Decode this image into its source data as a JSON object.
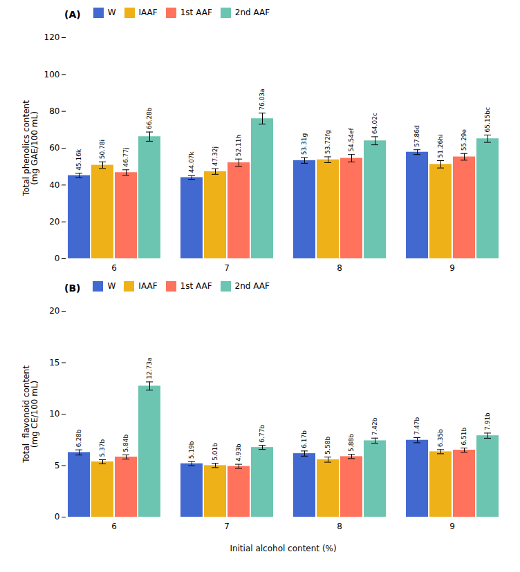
{
  "chart_data": [
    {
      "type": "bar",
      "title": "(A)",
      "ylabel": "Total phenolics content\n(mg GAE/100 mL)",
      "categories": [
        "6",
        "7",
        "8",
        "9"
      ],
      "series": [
        {
          "name": "W",
          "values": [
            45.16,
            44.07,
            53.31,
            57.86
          ],
          "errors": [
            1.2,
            1.0,
            1.5,
            1.3
          ],
          "value_labels": [
            "45.16k",
            "44.07k",
            "53.31g",
            "57.86d"
          ]
        },
        {
          "name": "IAAF",
          "values": [
            50.78,
            47.32,
            53.72,
            51.26
          ],
          "errors": [
            1.8,
            1.5,
            1.6,
            2.0
          ],
          "value_labels": [
            "50.78i",
            "47.32j",
            "53.72fg",
            "51.26hi"
          ]
        },
        {
          "name": "1st AAF",
          "values": [
            46.77,
            52.11,
            54.54,
            55.29
          ],
          "errors": [
            1.5,
            2.0,
            2.0,
            1.8
          ],
          "value_labels": [
            "46.77j",
            "52.11h",
            "54.54ef",
            "55.29e"
          ]
        },
        {
          "name": "2nd AAF",
          "values": [
            66.28,
            76.03,
            64.02,
            65.15
          ],
          "errors": [
            2.5,
            3.0,
            2.2,
            2.0
          ],
          "value_labels": [
            "66.28b",
            "76.03a",
            "64.02c",
            "65.15bc"
          ]
        }
      ],
      "ylim": [
        0,
        120
      ],
      "yticks": [
        0,
        20,
        40,
        60,
        80,
        100,
        120
      ],
      "grid": false,
      "legend": "upper left",
      "data_labels": true
    },
    {
      "type": "bar",
      "title": "(B)",
      "ylabel": "Total  flavonoid content\n(mg CE/100 mL)",
      "xlabel": "Initial alcohol content (%)",
      "categories": [
        "6",
        "7",
        "8",
        "9"
      ],
      "series": [
        {
          "name": "W",
          "values": [
            6.28,
            5.19,
            6.17,
            7.47
          ],
          "errors": [
            0.25,
            0.2,
            0.25,
            0.25
          ],
          "value_labels": [
            "6.28b",
            "5.19b",
            "6.17b",
            "7.47b"
          ]
        },
        {
          "name": "IAAF",
          "values": [
            5.37,
            5.01,
            5.58,
            6.35
          ],
          "errors": [
            0.2,
            0.2,
            0.25,
            0.2
          ],
          "value_labels": [
            "5.37b",
            "5.01b",
            "5.58b",
            "6.35b"
          ]
        },
        {
          "name": "1st AAF",
          "values": [
            5.84,
            4.93,
            5.88,
            6.51
          ],
          "errors": [
            0.2,
            0.2,
            0.2,
            0.2
          ],
          "value_labels": [
            "5.84b",
            "4.93b",
            "5.88b",
            "6.51b"
          ]
        },
        {
          "name": "2nd AAF",
          "values": [
            12.73,
            6.77,
            7.42,
            7.91
          ],
          "errors": [
            0.4,
            0.2,
            0.25,
            0.25
          ],
          "value_labels": [
            "12.73a",
            "6.77b",
            "7.42b",
            "7.91b"
          ]
        }
      ],
      "ylim": [
        0,
        20
      ],
      "yticks": [
        0,
        5,
        10,
        15,
        20
      ],
      "grid": false,
      "legend": "upper left",
      "data_labels": true
    }
  ]
}
